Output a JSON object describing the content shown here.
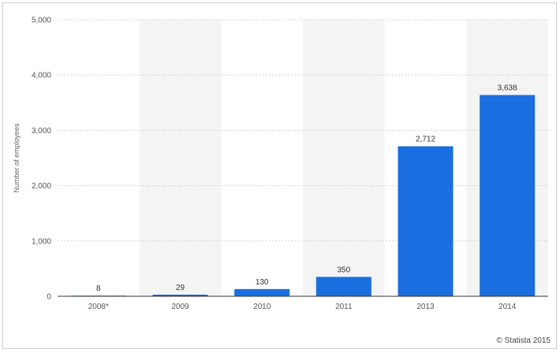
{
  "chart_data": {
    "type": "bar",
    "title": "",
    "xlabel": "",
    "ylabel": "Number of employees",
    "categories": [
      "2008*",
      "2009",
      "2010",
      "2011",
      "2013",
      "2014"
    ],
    "values": [
      8,
      29,
      130,
      350,
      2712,
      3638
    ],
    "value_labels": [
      "8",
      "29",
      "130",
      "350",
      "2,712",
      "3,638"
    ],
    "ylim": [
      0,
      5000
    ],
    "yticks": [
      0,
      1000,
      2000,
      3000,
      4000,
      5000
    ],
    "ytick_labels": [
      "0",
      "1,000",
      "2,000",
      "3,000",
      "4,000",
      "5,000"
    ],
    "grid": true,
    "alternating_column_shading": true,
    "bar_color": "#1a6ee0",
    "legend": "none"
  },
  "credit": "© Statista 2015"
}
